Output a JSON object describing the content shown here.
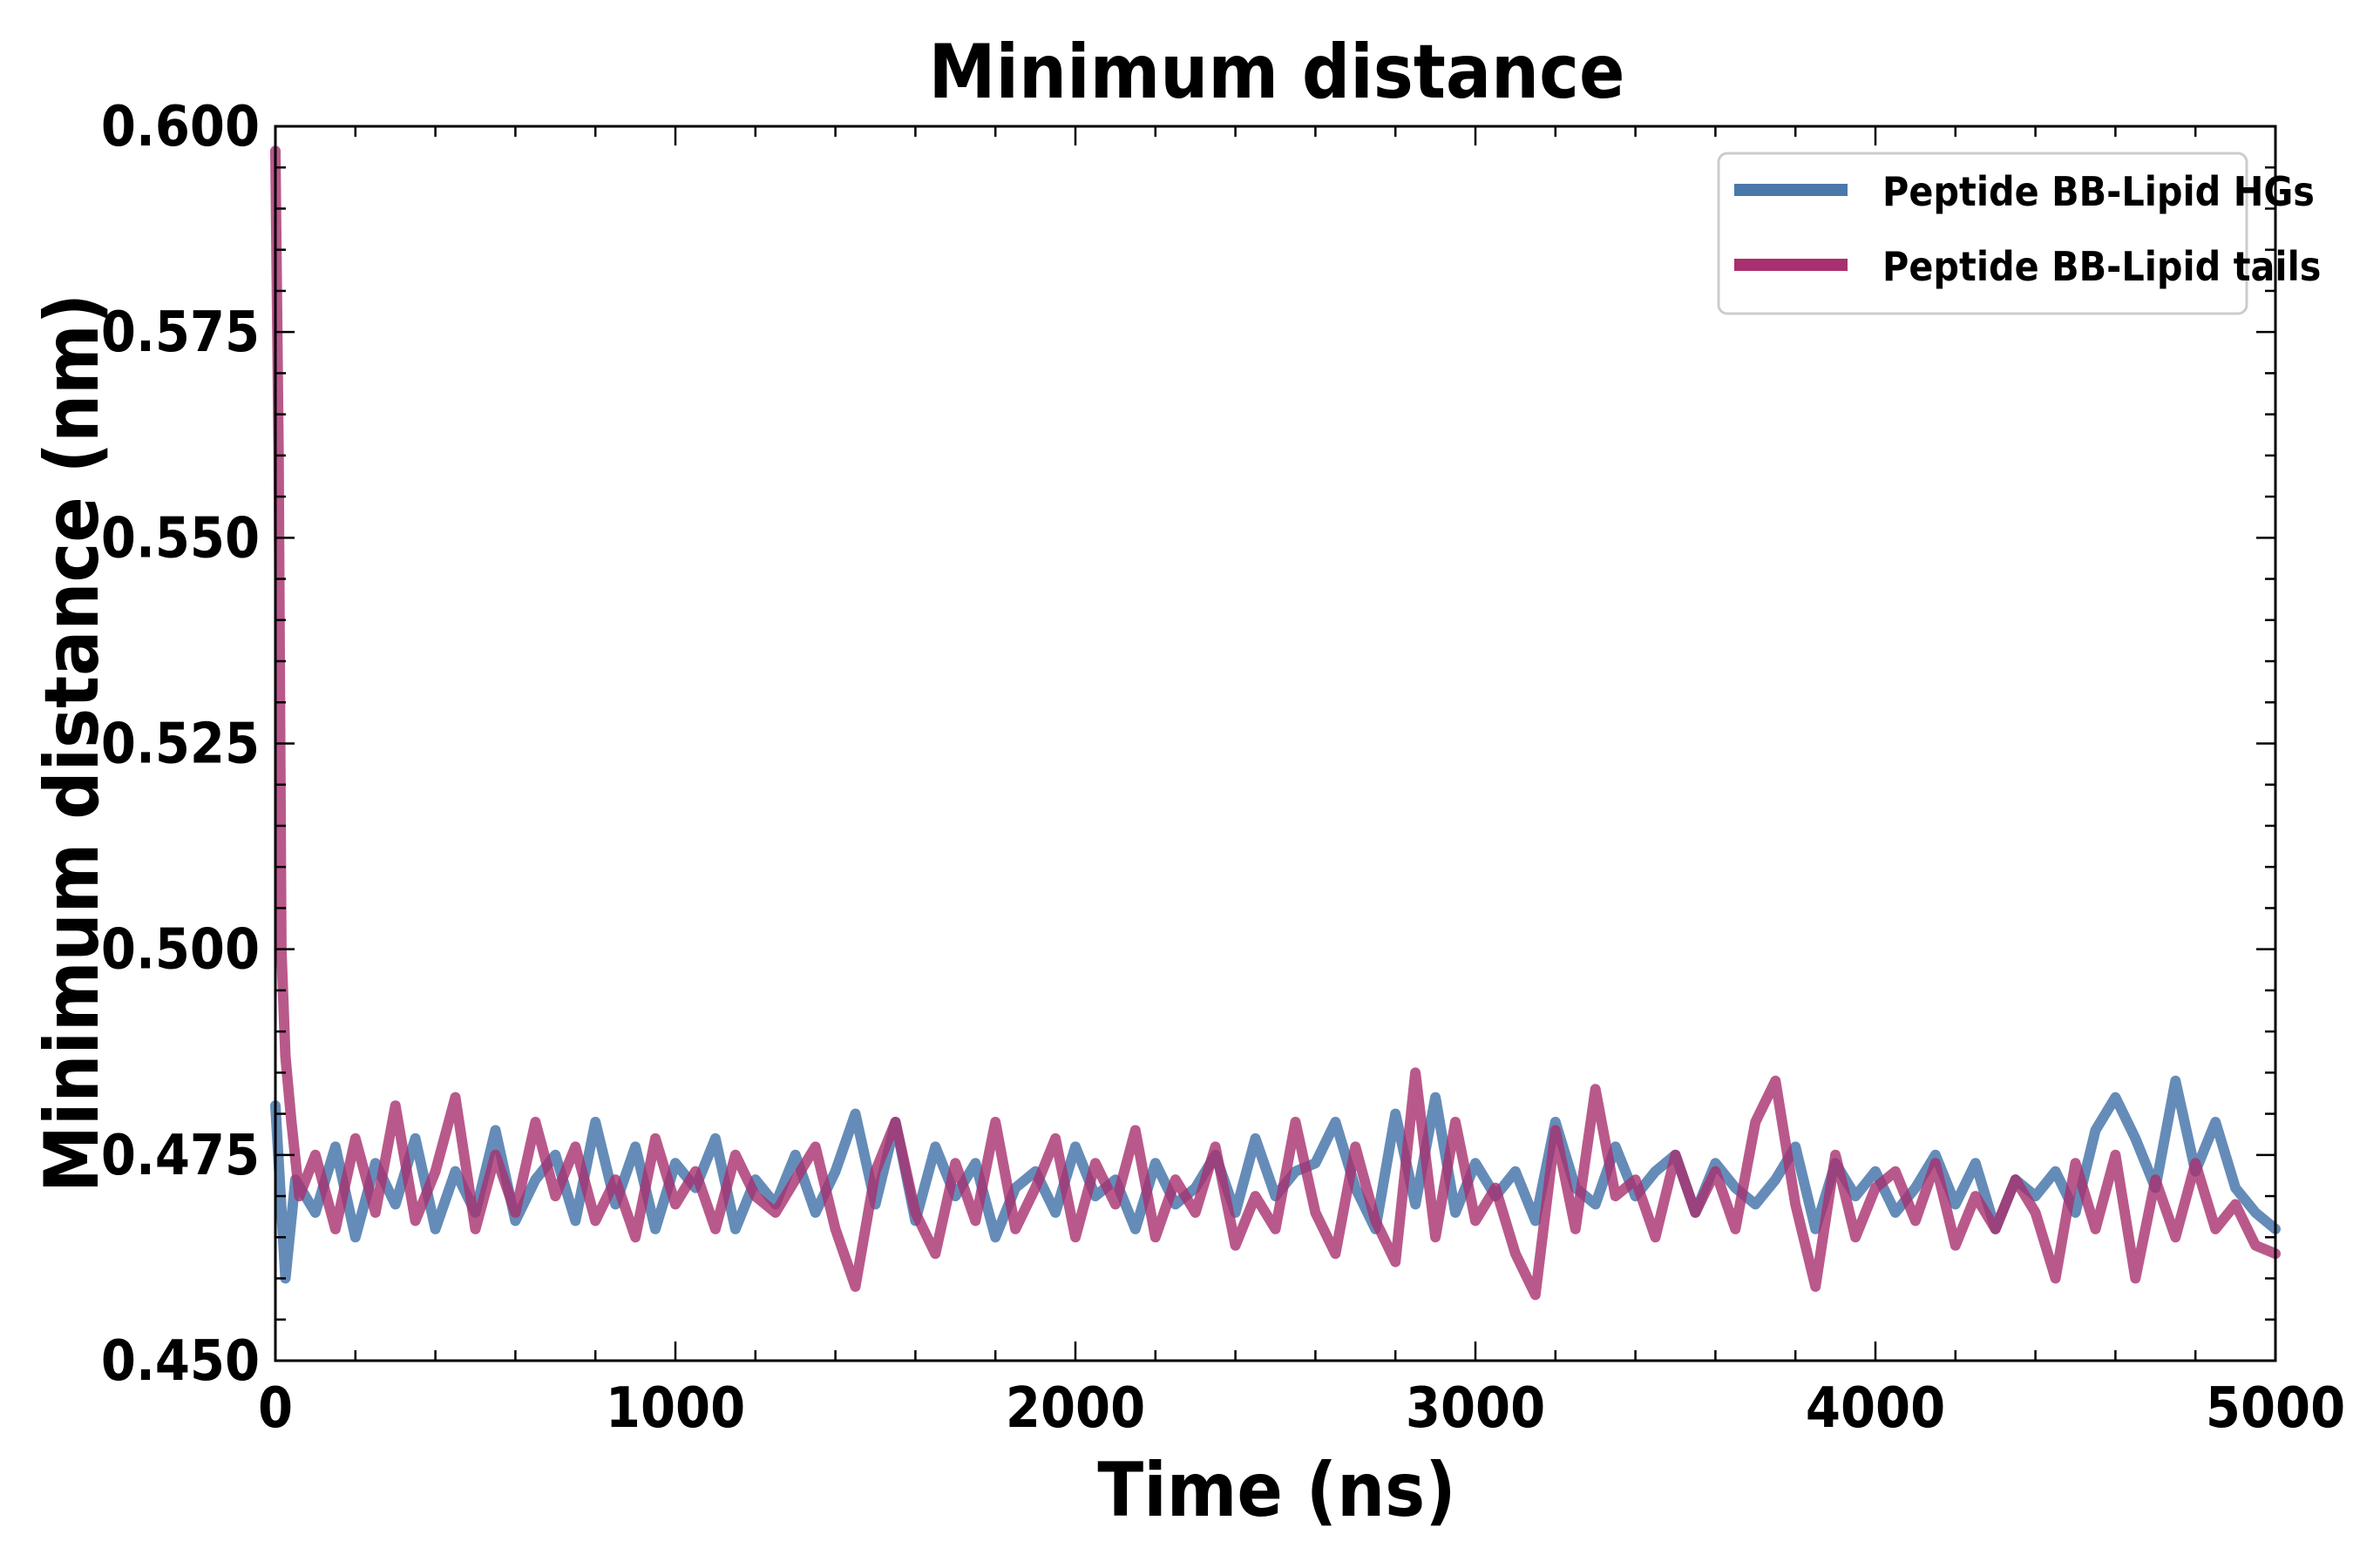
{
  "chart_data": {
    "type": "line",
    "title": "Minimum distance",
    "xlabel": "Time (ns)",
    "ylabel": "Minimum distance (nm)",
    "xlim": [
      0,
      5000
    ],
    "ylim": [
      0.45,
      0.6
    ],
    "xticks": [
      0,
      1000,
      2000,
      3000,
      4000,
      5000
    ],
    "xtick_labels": [
      "0",
      "1000",
      "2000",
      "3000",
      "4000",
      "5000"
    ],
    "yticks": [
      0.45,
      0.475,
      0.5,
      0.525,
      0.55,
      0.575,
      0.6
    ],
    "ytick_labels": [
      "0.450",
      "0.475",
      "0.500",
      "0.525",
      "0.550",
      "0.575",
      "0.600"
    ],
    "legend_position": "top-right",
    "grid": false,
    "series": [
      {
        "name": "Peptide BB-Lipid HGs",
        "color": "#4a78ab",
        "opacity": 0.85,
        "x": [
          0,
          25,
          50,
          100,
          150,
          200,
          250,
          300,
          350,
          400,
          450,
          500,
          550,
          600,
          650,
          700,
          750,
          800,
          850,
          900,
          950,
          1000,
          1050,
          1100,
          1150,
          1200,
          1250,
          1300,
          1350,
          1400,
          1450,
          1500,
          1550,
          1600,
          1650,
          1700,
          1750,
          1800,
          1850,
          1900,
          1950,
          2000,
          2050,
          2100,
          2150,
          2200,
          2250,
          2300,
          2350,
          2400,
          2450,
          2500,
          2550,
          2600,
          2650,
          2700,
          2750,
          2800,
          2850,
          2900,
          2950,
          3000,
          3050,
          3100,
          3150,
          3200,
          3250,
          3300,
          3350,
          3400,
          3450,
          3500,
          3550,
          3600,
          3650,
          3700,
          3750,
          3800,
          3850,
          3900,
          3950,
          4000,
          4050,
          4100,
          4150,
          4200,
          4250,
          4300,
          4350,
          4400,
          4450,
          4500,
          4550,
          4600,
          4650,
          4700,
          4750,
          4800,
          4850,
          4900,
          4950,
          5000
        ],
        "y": [
          0.481,
          0.46,
          0.472,
          0.468,
          0.476,
          0.465,
          0.474,
          0.469,
          0.477,
          0.466,
          0.473,
          0.468,
          0.478,
          0.467,
          0.472,
          0.475,
          0.467,
          0.479,
          0.469,
          0.476,
          0.466,
          0.474,
          0.471,
          0.477,
          0.466,
          0.472,
          0.469,
          0.475,
          0.468,
          0.473,
          0.48,
          0.469,
          0.479,
          0.467,
          0.476,
          0.47,
          0.474,
          0.465,
          0.471,
          0.473,
          0.468,
          0.476,
          0.47,
          0.472,
          0.466,
          0.474,
          0.469,
          0.471,
          0.475,
          0.468,
          0.477,
          0.47,
          0.473,
          0.474,
          0.479,
          0.471,
          0.466,
          0.48,
          0.469,
          0.482,
          0.468,
          0.474,
          0.47,
          0.473,
          0.467,
          0.479,
          0.471,
          0.469,
          0.476,
          0.47,
          0.473,
          0.475,
          0.468,
          0.474,
          0.471,
          0.469,
          0.472,
          0.476,
          0.466,
          0.474,
          0.47,
          0.473,
          0.468,
          0.471,
          0.475,
          0.469,
          0.474,
          0.466,
          0.472,
          0.47,
          0.473,
          0.468,
          0.478,
          0.482,
          0.477,
          0.471,
          0.484,
          0.473,
          0.479,
          0.471,
          0.468,
          0.466
        ]
      },
      {
        "name": "Peptide BB-Lipid tails",
        "color": "#a8306e",
        "opacity": 0.8,
        "x": [
          0,
          8,
          15,
          25,
          40,
          60,
          100,
          150,
          200,
          250,
          300,
          350,
          400,
          450,
          500,
          550,
          600,
          650,
          700,
          750,
          800,
          850,
          900,
          950,
          1000,
          1050,
          1100,
          1150,
          1200,
          1250,
          1300,
          1350,
          1400,
          1450,
          1500,
          1550,
          1600,
          1650,
          1700,
          1750,
          1800,
          1850,
          1900,
          1950,
          2000,
          2050,
          2100,
          2150,
          2200,
          2250,
          2300,
          2350,
          2400,
          2450,
          2500,
          2550,
          2600,
          2650,
          2700,
          2750,
          2800,
          2850,
          2900,
          2950,
          3000,
          3050,
          3100,
          3150,
          3200,
          3250,
          3300,
          3350,
          3400,
          3450,
          3500,
          3550,
          3600,
          3650,
          3700,
          3750,
          3800,
          3850,
          3900,
          3950,
          4000,
          4050,
          4100,
          4150,
          4200,
          4250,
          4300,
          4350,
          4400,
          4450,
          4500,
          4550,
          4600,
          4650,
          4700,
          4750,
          4800,
          4850,
          4900,
          4950,
          5000
        ],
        "y": [
          0.597,
          0.56,
          0.5,
          0.487,
          0.479,
          0.47,
          0.475,
          0.466,
          0.477,
          0.468,
          0.481,
          0.467,
          0.473,
          0.482,
          0.466,
          0.475,
          0.468,
          0.479,
          0.47,
          0.476,
          0.467,
          0.472,
          0.465,
          0.477,
          0.469,
          0.473,
          0.466,
          0.475,
          0.47,
          0.468,
          0.472,
          0.476,
          0.466,
          0.459,
          0.473,
          0.479,
          0.468,
          0.463,
          0.474,
          0.467,
          0.479,
          0.466,
          0.471,
          0.477,
          0.465,
          0.474,
          0.469,
          0.478,
          0.465,
          0.472,
          0.468,
          0.476,
          0.464,
          0.47,
          0.466,
          0.479,
          0.468,
          0.463,
          0.476,
          0.467,
          0.462,
          0.485,
          0.465,
          0.479,
          0.467,
          0.471,
          0.463,
          0.458,
          0.478,
          0.466,
          0.483,
          0.47,
          0.472,
          0.465,
          0.475,
          0.468,
          0.473,
          0.466,
          0.479,
          0.484,
          0.469,
          0.459,
          0.475,
          0.465,
          0.471,
          0.473,
          0.467,
          0.474,
          0.464,
          0.47,
          0.466,
          0.472,
          0.468,
          0.46,
          0.474,
          0.466,
          0.475,
          0.46,
          0.472,
          0.465,
          0.474,
          0.466,
          0.469,
          0.464,
          0.463
        ]
      }
    ]
  }
}
